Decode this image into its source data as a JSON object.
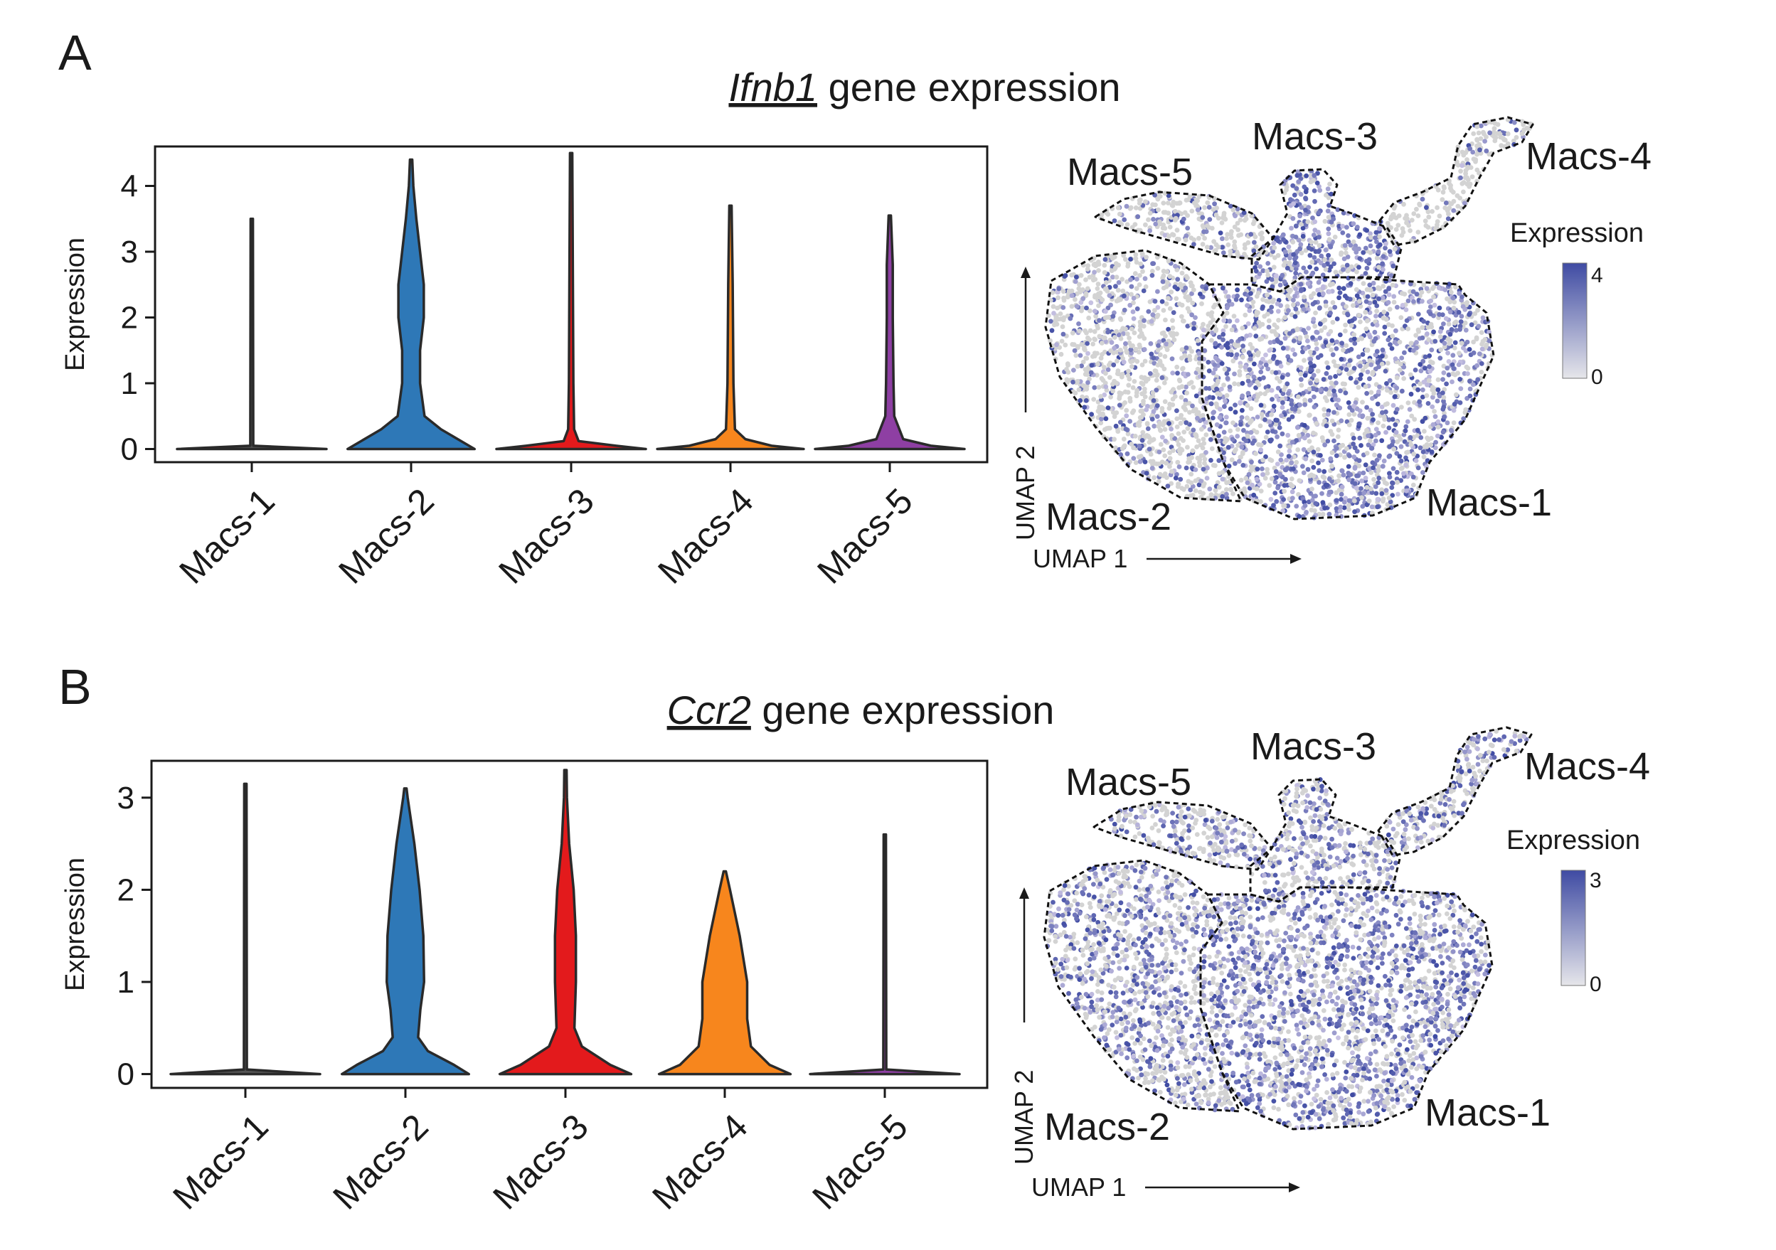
{
  "colors": {
    "macs_1": "#555555",
    "macs_2": "#2e78b7",
    "macs_3": "#e31a1c",
    "macs_4": "#f7861d",
    "macs_5": "#8e3fa3",
    "umap_low": "#d3d3d3",
    "umap_high": "#3f4ba3"
  },
  "chart_data": [
    {
      "panel": "A",
      "type": "violin",
      "title_gene": "Ifnb1",
      "title_rest": " gene expression",
      "ylabel": "Expression",
      "ylim": [
        -0.2,
        4.6
      ],
      "yticks": [
        "0",
        "1",
        "2",
        "3",
        "4"
      ],
      "categories": [
        "Macs-1",
        "Macs-2",
        "Macs-3",
        "Macs-4",
        "Macs-5"
      ],
      "max_values": [
        3.5,
        4.4,
        4.5,
        3.7,
        3.55
      ],
      "profiles": [
        [
          [
            0,
            1.0
          ],
          [
            0.05,
            0.02
          ],
          [
            3.5,
            0.0
          ]
        ],
        [
          [
            0,
            0.85
          ],
          [
            0.1,
            0.7
          ],
          [
            0.3,
            0.4
          ],
          [
            0.5,
            0.18
          ],
          [
            1.0,
            0.12
          ],
          [
            1.5,
            0.12
          ],
          [
            2.0,
            0.17
          ],
          [
            2.5,
            0.17
          ],
          [
            3.0,
            0.12
          ],
          [
            3.5,
            0.07
          ],
          [
            4.0,
            0.03
          ],
          [
            4.4,
            0.0
          ]
        ],
        [
          [
            0,
            1.0
          ],
          [
            0.05,
            0.6
          ],
          [
            0.12,
            0.1
          ],
          [
            0.3,
            0.04
          ],
          [
            1.0,
            0.03
          ],
          [
            4.5,
            0.0
          ]
        ],
        [
          [
            0,
            0.98
          ],
          [
            0.05,
            0.55
          ],
          [
            0.15,
            0.2
          ],
          [
            0.3,
            0.06
          ],
          [
            1.0,
            0.04
          ],
          [
            2.5,
            0.03
          ],
          [
            3.7,
            0.0
          ]
        ],
        [
          [
            0,
            1.0
          ],
          [
            0.05,
            0.55
          ],
          [
            0.15,
            0.18
          ],
          [
            0.5,
            0.06
          ],
          [
            1.0,
            0.05
          ],
          [
            2.0,
            0.04
          ],
          [
            2.8,
            0.04
          ],
          [
            3.55,
            0.0
          ]
        ]
      ],
      "umap_legend_title": "Expression",
      "umap_legend_ticks": [
        "4",
        "0"
      ],
      "umap_xlabel": "UMAP 1",
      "umap_ylabel": "UMAP 2",
      "umap_cluster_labels": [
        "Macs-5",
        "Macs-3",
        "Macs-4",
        "Macs-2",
        "Macs-1"
      ],
      "umap_cluster_expression": [
        0.25,
        0.75,
        0.15,
        0.3,
        0.65
      ]
    },
    {
      "panel": "B",
      "type": "violin",
      "title_gene": "Ccr2",
      "title_rest": " gene expression",
      "ylabel": "Expression",
      "ylim": [
        -0.15,
        3.4
      ],
      "yticks": [
        "0",
        "1",
        "2",
        "3"
      ],
      "categories": [
        "Macs-1",
        "Macs-2",
        "Macs-3",
        "Macs-4",
        "Macs-5"
      ],
      "max_values": [
        3.15,
        3.1,
        3.3,
        2.2,
        2.6
      ],
      "profiles": [
        [
          [
            0,
            1.0
          ],
          [
            0.05,
            0.02
          ],
          [
            3.15,
            0.0
          ]
        ],
        [
          [
            0,
            0.85
          ],
          [
            0.1,
            0.65
          ],
          [
            0.25,
            0.3
          ],
          [
            0.4,
            0.17
          ],
          [
            0.7,
            0.2
          ],
          [
            1.0,
            0.25
          ],
          [
            1.5,
            0.24
          ],
          [
            2.0,
            0.19
          ],
          [
            2.5,
            0.12
          ],
          [
            3.0,
            0.03
          ],
          [
            3.1,
            0.0
          ]
        ],
        [
          [
            0,
            0.88
          ],
          [
            0.1,
            0.6
          ],
          [
            0.3,
            0.22
          ],
          [
            0.5,
            0.12
          ],
          [
            1.0,
            0.14
          ],
          [
            1.5,
            0.14
          ],
          [
            2.0,
            0.11
          ],
          [
            2.5,
            0.05
          ],
          [
            3.0,
            0.02
          ],
          [
            3.3,
            0.0
          ]
        ],
        [
          [
            0,
            0.88
          ],
          [
            0.1,
            0.6
          ],
          [
            0.3,
            0.35
          ],
          [
            0.6,
            0.3
          ],
          [
            1.0,
            0.3
          ],
          [
            1.5,
            0.2
          ],
          [
            2.0,
            0.07
          ],
          [
            2.2,
            0.0
          ]
        ],
        [
          [
            0,
            1.0
          ],
          [
            0.05,
            0.02
          ],
          [
            2.6,
            0.0
          ]
        ]
      ],
      "umap_legend_title": "Expression",
      "umap_legend_ticks": [
        "3",
        "0"
      ],
      "umap_xlabel": "UMAP 1",
      "umap_ylabel": "UMAP 2",
      "umap_cluster_labels": [
        "Macs-5",
        "Macs-3",
        "Macs-4",
        "Macs-2",
        "Macs-1"
      ],
      "umap_cluster_expression": [
        0.45,
        0.5,
        0.5,
        0.55,
        0.6
      ]
    }
  ],
  "panel_letters": [
    "A",
    "B"
  ]
}
